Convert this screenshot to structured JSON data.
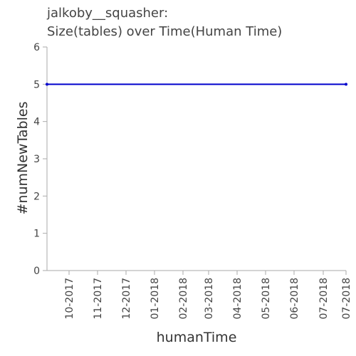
{
  "chart_data": {
    "type": "line",
    "title_line1": "jalkoby__squasher:",
    "title_line2": "Size(tables) over Time(Human Time)",
    "xlabel": "humanTime",
    "ylabel": "#numNewTables",
    "ylim": [
      0,
      6
    ],
    "yticks": [
      0,
      1,
      2,
      3,
      4,
      5,
      6
    ],
    "xticks": [
      "10-2017",
      "11-2017",
      "12-2017",
      "01-2018",
      "02-2018",
      "03-2018",
      "04-2018",
      "05-2018",
      "06-2018",
      "07-2018",
      "07-2018"
    ],
    "series": [
      {
        "color": "#0000cc",
        "points": [
          {
            "x": "2017-09-23",
            "y": 5
          },
          {
            "x": "2018-07-31",
            "y": 5
          }
        ]
      }
    ],
    "grid": false,
    "legend": "none"
  }
}
